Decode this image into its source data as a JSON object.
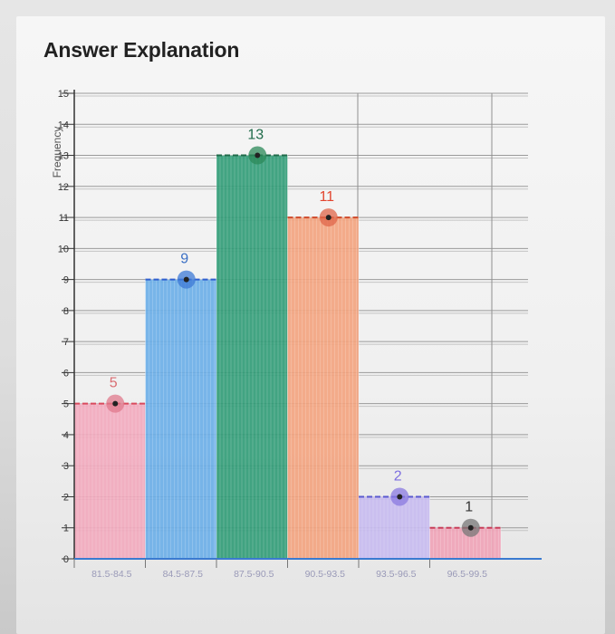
{
  "page": {
    "heading": "Answer Explanation"
  },
  "chart_data": {
    "type": "bar",
    "title": "",
    "xlabel": "",
    "ylabel": "Frequency",
    "ylim": [
      0,
      15
    ],
    "yticks": [
      0,
      1,
      2,
      3,
      4,
      5,
      6,
      7,
      8,
      9,
      10,
      11,
      12,
      13,
      14,
      15
    ],
    "grid": true,
    "categories": [
      "81.5-84.5",
      "84.5-87.5",
      "87.5-90.5",
      "90.5-93.5",
      "93.5-96.5",
      "96.5-99.5"
    ],
    "values": [
      5,
      9,
      13,
      11,
      2,
      1
    ],
    "data_labels": [
      "5",
      "9",
      "13",
      "11",
      "2",
      "1"
    ],
    "colors": {
      "fills": [
        "#f2a9bd",
        "#6aaee8",
        "#2f9b76",
        "#f3a37e",
        "#c6baf0",
        "#f0a3b7"
      ],
      "markers": [
        "#e07a8c",
        "#3d7ad6",
        "#2c8a5a",
        "#e0664a",
        "#8a7ae0",
        "#777777"
      ],
      "labels": [
        "#d96d72",
        "#3a6fc4",
        "#1f6a49",
        "#e2452f",
        "#7d6fe0",
        "#333333"
      ],
      "value_lines": [
        "#d94b5e",
        "#2f5fd0",
        "#1f6a49",
        "#cf4a2a",
        "#5a5ad0",
        "#c93f5a"
      ]
    }
  }
}
